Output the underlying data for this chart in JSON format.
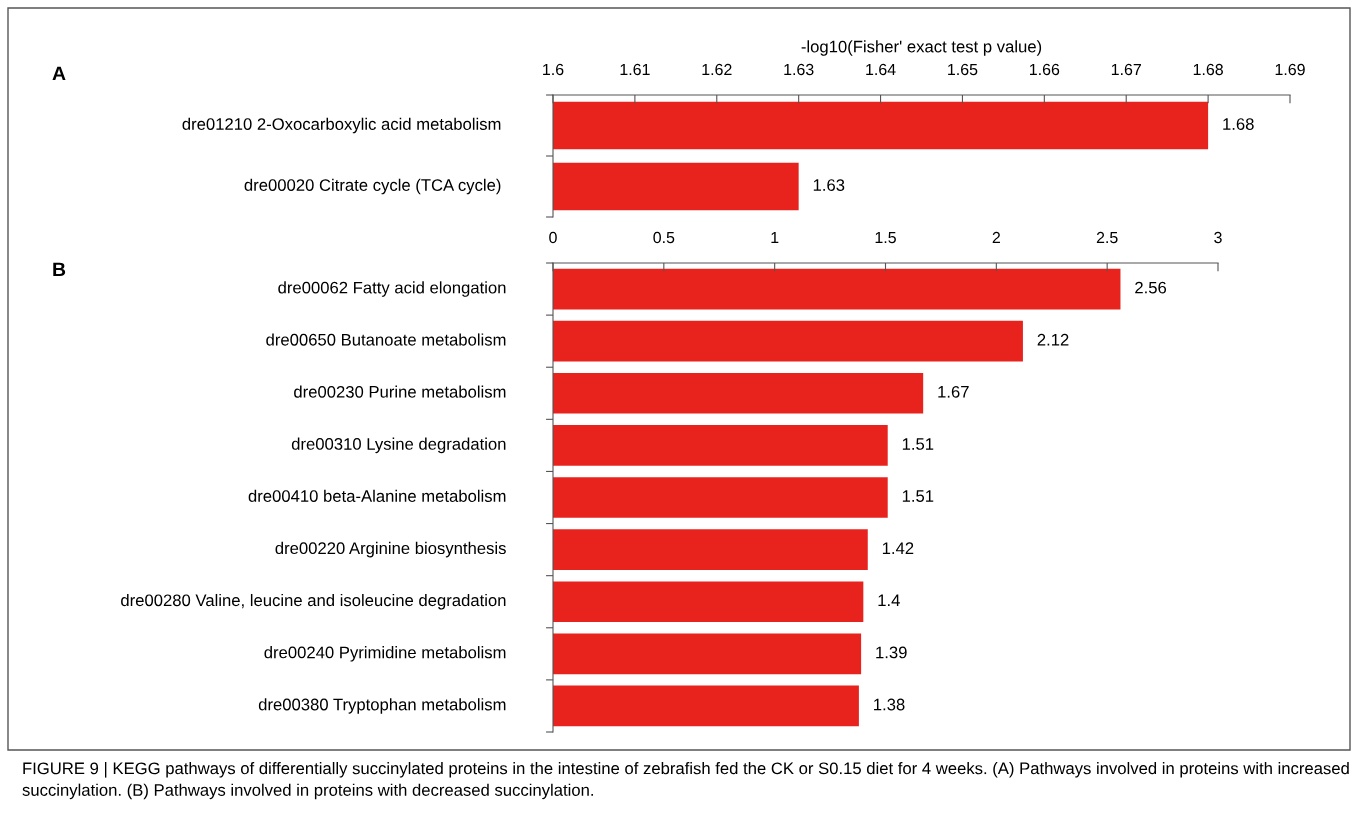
{
  "chart_data": [
    {
      "type": "bar",
      "orientation": "horizontal",
      "title": "A",
      "xlabel": "-log10(Fisher' exact test p value)",
      "categories": [
        "dre01210 2-Oxocarboxylic acid metabolism",
        "dre00020 Citrate cycle (TCA cycle)"
      ],
      "values": [
        1.68,
        1.63
      ],
      "color": "#e8231e",
      "xlim": [
        1.6,
        1.69
      ],
      "xticks": [
        1.6,
        1.61,
        1.62,
        1.63,
        1.64,
        1.65,
        1.66,
        1.67,
        1.68,
        1.69
      ],
      "data_labels": true,
      "grid": false,
      "legend": false
    },
    {
      "type": "bar",
      "orientation": "horizontal",
      "title": "B",
      "categories": [
        "dre00062 Fatty acid elongation",
        "dre00650 Butanoate metabolism",
        "dre00230 Purine metabolism",
        "dre00310 Lysine degradation",
        "dre00410 beta-Alanine metabolism",
        "dre00220 Arginine biosynthesis",
        "dre00280 Valine, leucine and isoleucine degradation",
        "dre00240 Pyrimidine metabolism",
        "dre00380 Tryptophan metabolism"
      ],
      "values": [
        2.56,
        2.12,
        1.67,
        1.51,
        1.51,
        1.42,
        1.4,
        1.39,
        1.38
      ],
      "color": "#e8231e",
      "xlim": [
        0,
        3
      ],
      "xticks": [
        0,
        0.5,
        1,
        1.5,
        2,
        2.5,
        3
      ],
      "data_labels": true,
      "grid": false,
      "legend": false,
      "annotations": [
        "FIGURE 9 | KEGG pathways of differentially succinylated proteins in the intestine of zebrafish fed the CK or S0.15 diet for 4 weeks. (A) Pathways involved in proteins with increased succinylation. (B) Pathways involved in proteins with decreased succinylation."
      ]
    }
  ]
}
